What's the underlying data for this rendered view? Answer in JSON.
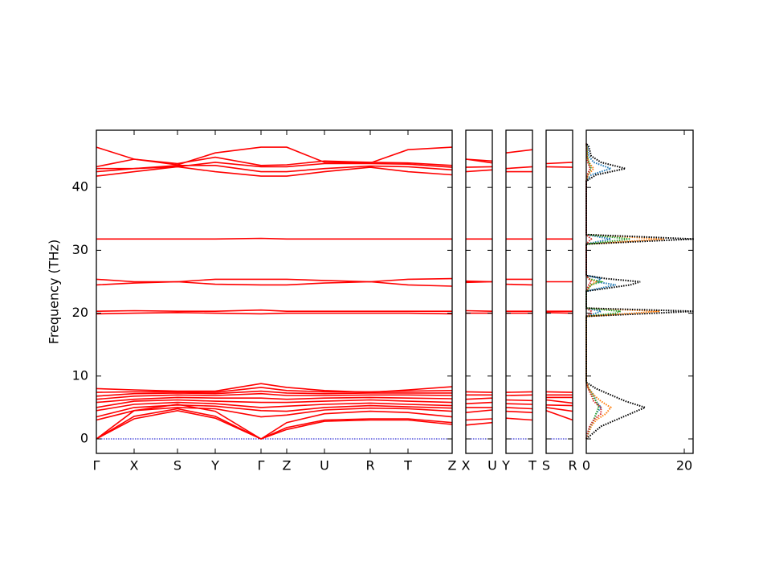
{
  "chart_data": {
    "type": "band_structure",
    "ylabel": "Frequency (THz)",
    "ylim": [
      -2.3,
      49.1
    ],
    "yticks": [
      0,
      10,
      20,
      30,
      40
    ],
    "band_color": "#ff0000",
    "zero_line": {
      "value": 0,
      "color": "#0000cc"
    },
    "segments": [
      {
        "labels": [
          "Γ",
          "X",
          "S",
          "Y",
          "Γ",
          "Z",
          "U",
          "R",
          "T",
          "Z"
        ],
        "x": [
          0,
          0.47,
          1.01,
          1.48,
          2.05,
          2.37,
          2.84,
          3.41,
          3.88,
          4.43
        ],
        "xlim": [
          0,
          4.43
        ],
        "bands": [
          [
            0,
            3.2,
            4.5,
            3.3,
            0,
            1.5,
            2.8,
            3.0,
            3.0,
            2.3
          ],
          [
            0,
            3.6,
            4.8,
            3.6,
            0,
            1.8,
            3.0,
            3.2,
            3.2,
            2.6
          ],
          [
            0,
            4.5,
            5.5,
            4.4,
            0,
            2.6,
            4.0,
            4.4,
            4.2,
            3.5
          ],
          [
            3.0,
            4.5,
            5.0,
            4.8,
            3.5,
            3.8,
            4.6,
            4.9,
            4.8,
            4.4
          ],
          [
            3.5,
            5.0,
            5.4,
            5.2,
            4.5,
            4.4,
            5.0,
            5.3,
            5.1,
            4.9
          ],
          [
            4.5,
            5.5,
            5.8,
            5.6,
            5.0,
            5.2,
            5.5,
            5.7,
            5.5,
            5.3
          ],
          [
            5.0,
            6.0,
            6.2,
            6.0,
            5.8,
            5.8,
            6.0,
            6.2,
            6.0,
            5.8
          ],
          [
            5.8,
            6.3,
            6.6,
            6.5,
            6.5,
            6.3,
            6.5,
            6.6,
            6.5,
            6.4
          ],
          [
            6.3,
            6.8,
            7.0,
            6.9,
            7.2,
            6.9,
            6.9,
            7.0,
            7.0,
            6.9
          ],
          [
            6.8,
            7.2,
            7.3,
            7.2,
            7.6,
            7.3,
            7.2,
            7.3,
            7.3,
            7.3
          ],
          [
            7.4,
            7.5,
            7.5,
            7.4,
            8.2,
            7.7,
            7.5,
            7.5,
            7.6,
            7.7
          ],
          [
            8.0,
            7.8,
            7.6,
            7.6,
            8.8,
            8.2,
            7.7,
            7.4,
            7.8,
            8.3
          ],
          [
            19.9,
            20.0,
            20.1,
            20.0,
            19.9,
            20.0,
            20.0,
            20.0,
            20.0,
            19.9
          ],
          [
            20.3,
            20.4,
            20.3,
            20.3,
            20.5,
            20.3,
            20.3,
            20.3,
            20.3,
            20.3
          ],
          [
            24.5,
            24.8,
            25.0,
            24.6,
            24.5,
            24.5,
            24.8,
            25.0,
            24.5,
            24.3
          ],
          [
            25.4,
            25.0,
            25.0,
            25.4,
            25.4,
            25.4,
            25.2,
            25.0,
            25.4,
            25.5
          ],
          [
            31.8,
            31.8,
            31.8,
            31.8,
            31.9,
            31.8,
            31.8,
            31.8,
            31.8,
            31.8
          ],
          [
            41.8,
            42.5,
            43.3,
            42.5,
            41.8,
            41.8,
            42.5,
            43.2,
            42.5,
            42.0
          ],
          [
            42.5,
            43.0,
            43.5,
            43.5,
            42.5,
            42.5,
            43.0,
            43.4,
            43.3,
            42.8
          ],
          [
            43.0,
            43.0,
            43.3,
            44.0,
            43.3,
            43.3,
            43.8,
            43.8,
            43.7,
            43.2
          ],
          [
            43.3,
            44.5,
            43.8,
            44.8,
            43.5,
            43.6,
            44.2,
            44.0,
            43.9,
            43.5
          ],
          [
            46.4,
            44.5,
            43.6,
            45.5,
            46.4,
            46.4,
            44.0,
            43.9,
            46.0,
            46.4
          ]
        ]
      },
      {
        "labels": [
          "X",
          "U"
        ],
        "x": [
          0,
          1
        ],
        "xlim": [
          0,
          1
        ],
        "bands": [
          [
            2.2,
            2.6
          ],
          [
            3.0,
            3.2
          ],
          [
            4.2,
            4.6
          ],
          [
            5.0,
            5.0
          ],
          [
            5.6,
            5.8
          ],
          [
            6.3,
            6.5
          ],
          [
            7.0,
            7.0
          ],
          [
            7.5,
            7.4
          ],
          [
            20.0,
            20.0
          ],
          [
            20.4,
            20.3
          ],
          [
            24.9,
            25.0
          ],
          [
            25.1,
            25.0
          ],
          [
            31.8,
            31.8
          ],
          [
            42.5,
            42.8
          ],
          [
            43.2,
            43.3
          ],
          [
            44.5,
            43.9
          ],
          [
            44.5,
            44.2
          ]
        ]
      },
      {
        "labels": [
          "Y",
          "T"
        ],
        "x": [
          0,
          1
        ],
        "xlim": [
          0,
          1
        ],
        "bands": [
          [
            3.3,
            3.0
          ],
          [
            4.4,
            4.2
          ],
          [
            5.0,
            4.8
          ],
          [
            5.6,
            5.5
          ],
          [
            6.2,
            6.1
          ],
          [
            6.9,
            7.0
          ],
          [
            7.4,
            7.5
          ],
          [
            20.0,
            20.0
          ],
          [
            20.3,
            20.3
          ],
          [
            24.6,
            24.5
          ],
          [
            25.4,
            25.4
          ],
          [
            31.8,
            31.8
          ],
          [
            42.5,
            42.5
          ],
          [
            43.0,
            43.3
          ],
          [
            45.5,
            46.0
          ]
        ]
      },
      {
        "labels": [
          "S",
          "R"
        ],
        "x": [
          0,
          1
        ],
        "xlim": [
          0,
          1
        ],
        "bands": [
          [
            4.5,
            3.0
          ],
          [
            5.0,
            4.4
          ],
          [
            5.4,
            5.3
          ],
          [
            6.2,
            5.7
          ],
          [
            6.6,
            6.6
          ],
          [
            7.0,
            7.0
          ],
          [
            7.5,
            7.4
          ],
          [
            20.1,
            20.0
          ],
          [
            20.3,
            20.3
          ],
          [
            25.0,
            25.0
          ],
          [
            31.8,
            31.8
          ],
          [
            43.3,
            43.2
          ],
          [
            43.8,
            44.0
          ]
        ]
      }
    ],
    "dos": {
      "xlim": [
        0,
        21.8
      ],
      "xticks": [
        0,
        20
      ],
      "frequency": [
        0,
        1,
        2,
        3,
        4,
        5,
        6,
        7,
        8,
        9,
        19.5,
        20,
        20.3,
        20.8,
        23.5,
        24.5,
        25,
        25.5,
        26,
        31,
        31.8,
        32.5,
        41,
        42,
        43,
        44,
        45,
        46.5,
        47
      ],
      "series": [
        {
          "color": "#1f77b4",
          "values": [
            0,
            0.3,
            0.8,
            1.5,
            2,
            3,
            2,
            1.5,
            0.5,
            0,
            0,
            2,
            3,
            0,
            0,
            6,
            2,
            3,
            0,
            0,
            5,
            0,
            0,
            1,
            5,
            1.5,
            0.5,
            0.3,
            0
          ]
        },
        {
          "color": "#ff7f0e",
          "values": [
            0,
            0.5,
            1,
            2,
            4,
            5,
            3,
            1.5,
            0.5,
            0,
            0,
            10,
            15,
            0,
            0,
            1,
            2,
            0.5,
            0,
            0,
            16,
            0,
            0,
            0.4,
            1.5,
            0.5,
            0.2,
            0.1,
            0
          ]
        },
        {
          "color": "#2ca02c",
          "values": [
            0,
            0.4,
            0.8,
            1.5,
            2,
            2.5,
            2,
            1.2,
            0.5,
            0,
            0,
            6,
            7,
            0,
            0,
            1,
            3,
            0.5,
            0,
            0,
            9,
            0,
            0,
            0.3,
            1,
            0.5,
            0.2,
            0.1,
            0
          ]
        },
        {
          "color": "#d62728",
          "values": [
            0,
            0.3,
            0.7,
            1.5,
            3,
            3,
            1.5,
            1,
            0.4,
            0,
            0,
            1,
            1,
            0,
            0,
            0.5,
            1,
            0.5,
            0,
            0,
            1,
            0,
            0,
            0.2,
            0.8,
            0.3,
            0.1,
            0.05,
            0
          ]
        },
        {
          "color": "#000000",
          "values": [
            0,
            1.5,
            3,
            6,
            9,
            12,
            8,
            5,
            2,
            0,
            0,
            14,
            22,
            0,
            0,
            9,
            11,
            4,
            0,
            0,
            22,
            0,
            0,
            2,
            8,
            3,
            1,
            0.5,
            0
          ]
        }
      ]
    }
  }
}
